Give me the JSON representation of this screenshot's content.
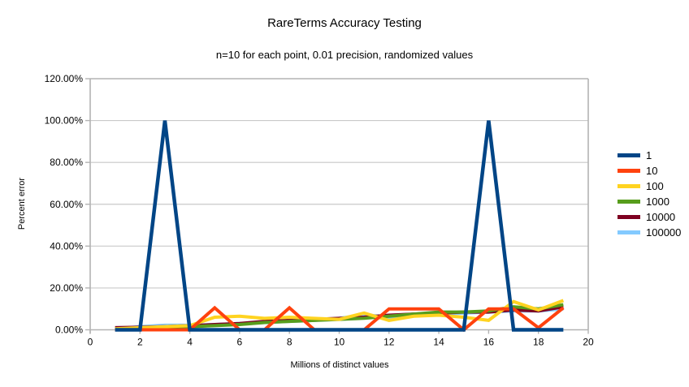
{
  "title": "RareTerms Accuracy Testing",
  "subtitle": "n=10 for each point, 0.01 precision, randomized values",
  "y_axis": {
    "title": "Percent error",
    "ticks": [
      "0.00%",
      "20.00%",
      "40.00%",
      "60.00%",
      "80.00%",
      "100.00%",
      "120.00%"
    ],
    "min": 0,
    "max": 120
  },
  "x_axis": {
    "title": "Millions of distinct values",
    "ticks": [
      "0",
      "2",
      "4",
      "6",
      "8",
      "10",
      "12",
      "14",
      "16",
      "18",
      "20"
    ],
    "min": 0,
    "max": 20
  },
  "colors": {
    "grid": "#c9c9c9",
    "axis": "#b3b3b3",
    "background": "#ffffff",
    "text": "#000000"
  },
  "chart_data": {
    "type": "line",
    "title": "RareTerms Accuracy Testing",
    "subtitle": "n=10 for each point, 0.01 precision, randomized values",
    "xlabel": "Millions of distinct values",
    "ylabel": "Percent error",
    "xlim": [
      0,
      20
    ],
    "ylim": [
      0,
      120
    ],
    "grid": true,
    "legend_position": "right",
    "x": [
      1,
      2,
      3,
      4,
      5,
      6,
      7,
      8,
      9,
      10,
      11,
      12,
      13,
      14,
      15,
      16,
      17,
      18,
      19
    ],
    "series": [
      {
        "name": "1",
        "color": "#004586",
        "values": [
          0,
          0,
          100,
          0,
          0,
          0,
          0,
          0,
          0,
          0,
          0,
          0,
          0,
          0,
          0,
          100,
          0,
          0,
          0
        ]
      },
      {
        "name": "10",
        "color": "#ff420e",
        "values": [
          0,
          0,
          0,
          0,
          10.5,
          0,
          0,
          10.5,
          0,
          0,
          0,
          10,
          10,
          10,
          0,
          10,
          10,
          1,
          10.5
        ]
      },
      {
        "name": "100",
        "color": "#ffd320",
        "values": [
          0.5,
          1,
          1.5,
          2,
          6,
          6.5,
          5.5,
          6,
          5.5,
          5,
          8,
          4.5,
          6.5,
          7,
          6,
          4.5,
          13.5,
          9.5,
          14
        ]
      },
      {
        "name": "1000",
        "color": "#579d1c",
        "values": [
          0.3,
          0.7,
          1,
          1.5,
          2,
          2.5,
          3.5,
          4,
          4.5,
          5,
          5.5,
          6.5,
          7.5,
          8.5,
          8.5,
          9,
          11,
          10,
          12
        ]
      },
      {
        "name": "10000",
        "color": "#7e0021",
        "values": [
          1,
          1.2,
          1.5,
          2,
          2.5,
          3,
          4,
          4.5,
          5,
          5.5,
          6,
          7,
          7.5,
          8,
          8.5,
          8.5,
          9.5,
          9,
          11
        ]
      },
      {
        "name": "100000",
        "color": "#83caff",
        "values": [
          0.5,
          1.5,
          2.2,
          2.2,
          2.5,
          3,
          3.5,
          4,
          4.5,
          5.5,
          7.2,
          6,
          7,
          7.5,
          8,
          8.5,
          9,
          9,
          10
        ]
      }
    ]
  }
}
